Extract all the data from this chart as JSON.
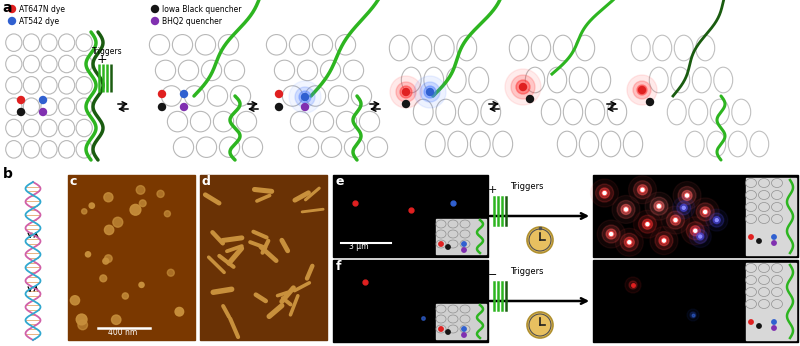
{
  "bg_color": "#ffffff",
  "panel_labels": [
    "a",
    "b",
    "c",
    "d",
    "e",
    "f"
  ],
  "legend_items": [
    {
      "label": "AT647N dye",
      "color": "#e02020"
    },
    {
      "label": "AT542 dye",
      "color": "#3060d0"
    },
    {
      "label": "Iowa Black quencher",
      "color": "#151515"
    },
    {
      "label": "BHQ2 quencher",
      "color": "#8030b0"
    }
  ],
  "lat_color": "#b0b0b0",
  "green_color": "#2db520",
  "dark_green_color": "#1a5c10",
  "afm_bg_c": "#7a3800",
  "afm_bg_d": "#6a3205",
  "afm_particle": "#c8903c",
  "red_dye": "#e02020",
  "blue_dye": "#3060d0",
  "black_q": "#151515",
  "purple_q": "#8030b0",
  "trigger_green": "#2db520",
  "clock_face": "#e8c060",
  "clock_edge": "#b09030"
}
